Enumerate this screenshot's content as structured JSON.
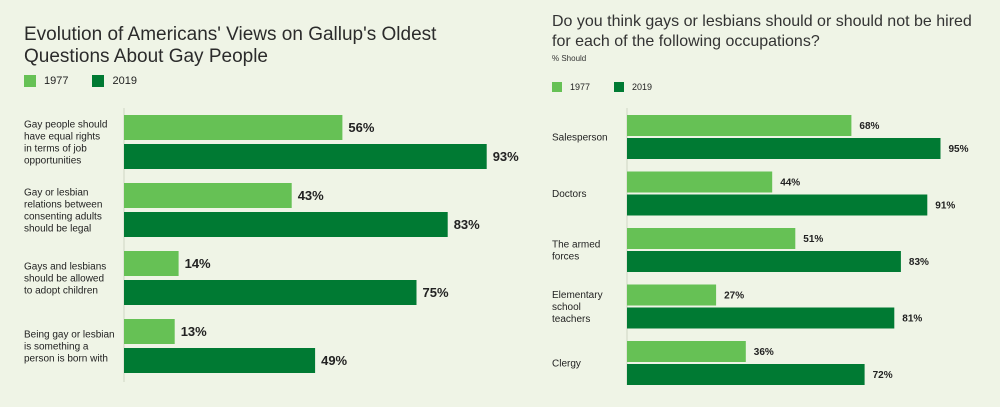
{
  "colors": {
    "y1977": "#66c155",
    "y2019": "#007a33",
    "axis": "#cfd6c4"
  },
  "chart_data": [
    {
      "type": "bar",
      "orientation": "horizontal",
      "title": "Evolution of Americans' Views on Gallup's Oldest Questions About Gay People",
      "subtitle": "",
      "categories": [
        "Gay people should have equal rights in terms of job opportunities",
        "Gay or lesbian relations between consenting adults should be legal",
        "Gays and lesbians should be allowed to adopt children",
        "Being gay or lesbian is something a person is born with"
      ],
      "category_lines": [
        [
          "Gay people should",
          "have equal rights",
          "in terms of job",
          "opportunities"
        ],
        [
          "Gay or lesbian",
          "relations between",
          "consenting adults",
          "should be legal"
        ],
        [
          "Gays and lesbians",
          "should be allowed",
          "to adopt children"
        ],
        [
          "Being gay or lesbian",
          "is something a",
          "person is born with"
        ]
      ],
      "series": [
        {
          "name": "1977",
          "values": [
            56,
            43,
            14,
            13
          ],
          "labels": [
            "56%",
            "43%",
            "14%",
            "13%"
          ]
        },
        {
          "name": "2019",
          "values": [
            93,
            83,
            75,
            49
          ],
          "labels": [
            "93%",
            "83%",
            "75%",
            "49%"
          ]
        }
      ],
      "xlim": [
        0,
        100
      ],
      "legend": "top-left",
      "grid": false
    },
    {
      "type": "bar",
      "orientation": "horizontal",
      "title": "Do you think gays or lesbians should or should not be hired for each of the following occupations?",
      "subtitle": "% Should",
      "categories": [
        "Salesperson",
        "Doctors",
        "The armed forces",
        "Elementary school teachers",
        "Clergy"
      ],
      "category_lines": [
        [
          "Salesperson"
        ],
        [
          "Doctors"
        ],
        [
          "The armed",
          "forces"
        ],
        [
          "Elementary",
          "school",
          "teachers"
        ],
        [
          "Clergy"
        ]
      ],
      "series": [
        {
          "name": "1977",
          "values": [
            68,
            44,
            51,
            27,
            36
          ],
          "labels": [
            "68%",
            "44%",
            "51%",
            "27%",
            "36%"
          ]
        },
        {
          "name": "2019",
          "values": [
            95,
            91,
            83,
            81,
            72
          ],
          "labels": [
            "95%",
            "91%",
            "83%",
            "81%",
            "72%"
          ]
        }
      ],
      "xlim": [
        0,
        100
      ],
      "legend": "top-left",
      "grid": false
    }
  ]
}
